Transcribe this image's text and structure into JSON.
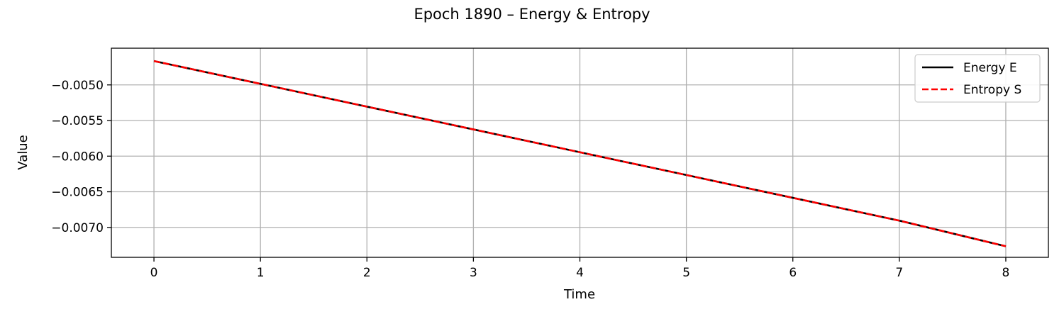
{
  "chart_data": {
    "type": "line",
    "title": "Epoch 1890 – Energy & Entropy",
    "xlabel": "Time",
    "ylabel": "Value",
    "xlim": [
      -0.4,
      8.4
    ],
    "ylim": [
      -0.00742,
      -0.004485
    ],
    "xticks": [
      0,
      1,
      2,
      3,
      4,
      5,
      6,
      7,
      8
    ],
    "xtick_labels": [
      "0",
      "1",
      "2",
      "3",
      "4",
      "5",
      "6",
      "7",
      "8"
    ],
    "yticks": [
      -0.005,
      -0.0055,
      -0.006,
      -0.0065,
      -0.007
    ],
    "ytick_labels": [
      "−0.0050",
      "−0.0055",
      "−0.0060",
      "−0.0065",
      "−0.0070"
    ],
    "grid": true,
    "legend_position": "top-right",
    "x": [
      0,
      1,
      2,
      3,
      4,
      5,
      6,
      7,
      8
    ],
    "series": [
      {
        "name": "Energy E",
        "color": "#000000",
        "dash": "solid",
        "values": [
          -0.004665,
          -0.004985,
          -0.005305,
          -0.005625,
          -0.005945,
          -0.006265,
          -0.006585,
          -0.006905,
          -0.007265
        ]
      },
      {
        "name": "Entropy S",
        "color": "#ff0000",
        "dash": "dashed",
        "values": [
          -0.004665,
          -0.004985,
          -0.005305,
          -0.005625,
          -0.005945,
          -0.006265,
          -0.006585,
          -0.006905,
          -0.007265
        ]
      }
    ]
  }
}
